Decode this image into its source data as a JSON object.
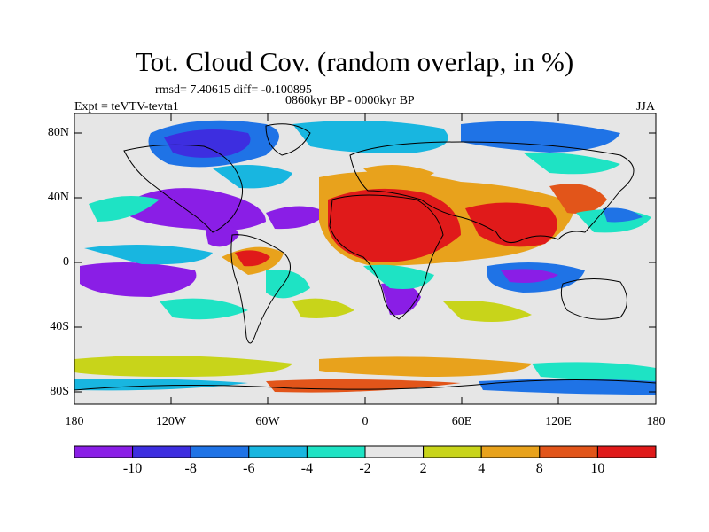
{
  "title": "Tot. Cloud Cov. (random overlap, in %)",
  "stats": "rmsd= 7.40615 diff= -0.100895",
  "period": "0860kyr BP - 0000kyr BP",
  "experiment": "Expt = teVTV-tevta1",
  "season": "JJA",
  "lat_ticks": [
    "80N",
    "40N",
    "0",
    "40S",
    "80S"
  ],
  "lon_ticks": [
    "180",
    "120W",
    "60W",
    "0",
    "60E",
    "120E",
    "180"
  ],
  "colorbar": {
    "tick_labels": [
      "-10",
      "-8",
      "-6",
      "-4",
      "-2",
      "2",
      "4",
      "8",
      "10"
    ],
    "colors": [
      "#8a1ee6",
      "#3d2ee0",
      "#1f73e6",
      "#18b6e0",
      "#1ee3c4",
      "#e6e6e6",
      "#c8d41a",
      "#e8a21c",
      "#e2551a",
      "#e01a1a"
    ]
  },
  "map_colors": {
    "background": "#e6e6e6",
    "coast": "#000000"
  }
}
